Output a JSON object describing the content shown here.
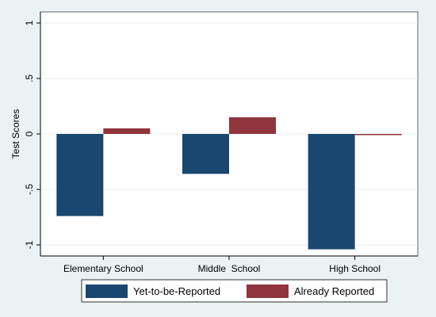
{
  "chart_data": {
    "type": "bar",
    "title": "",
    "xlabel": "",
    "ylabel": "Test Scores",
    "categories": [
      "Elementary School",
      "Middle  School",
      "High School"
    ],
    "series": [
      {
        "name": "Yet-to-be-Reported",
        "color": "#1a476f",
        "values": [
          -0.74,
          -0.36,
          -1.04
        ]
      },
      {
        "name": "Already Reported",
        "color": "#90353b",
        "values": [
          0.05,
          0.15,
          -0.01
        ]
      }
    ],
    "ylim": [
      -1.1,
      1.1
    ],
    "yticks": [
      -1,
      -0.5,
      0,
      0.5,
      1
    ],
    "ytick_labels": [
      "-1",
      "-.5",
      "0",
      ".5",
      "1"
    ],
    "grid": true,
    "legend_position": "bottom",
    "colors": {
      "background": "#eaf2f3",
      "plot_background": "#ffffff",
      "grid": "#eaf2f3"
    }
  }
}
